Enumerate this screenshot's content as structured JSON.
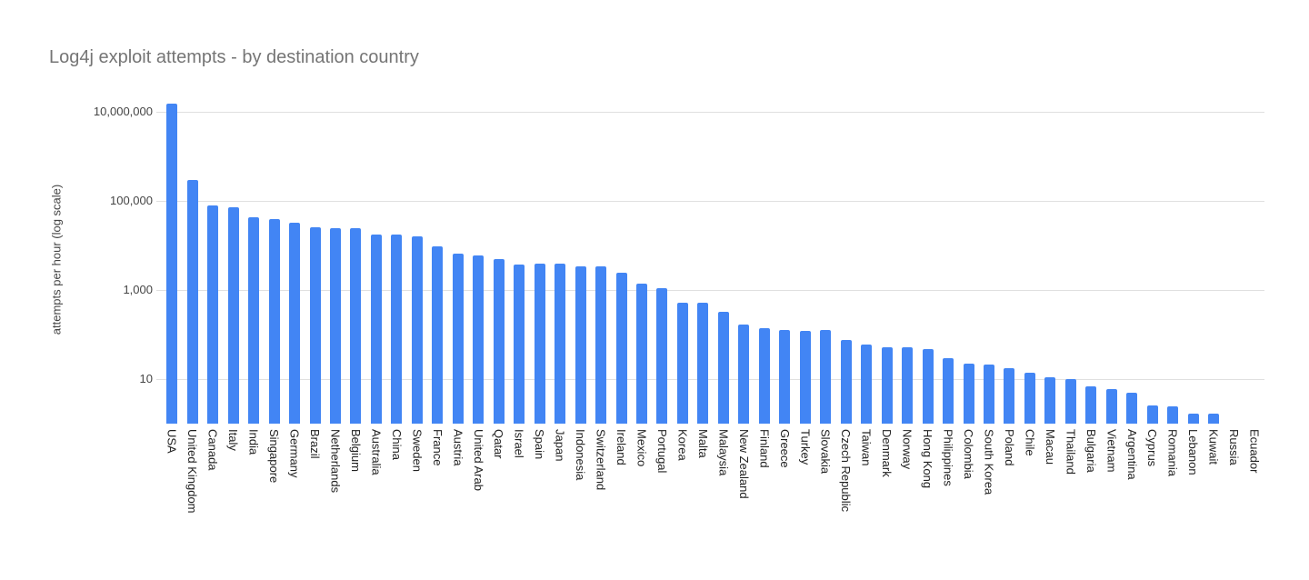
{
  "chart_data": {
    "type": "bar",
    "title": "Log4j exploit attempts - by destination country",
    "ylabel": "attempts per hour (log scale)",
    "xlabel": "",
    "yscale": "log",
    "ylim": [
      1,
      26000000
    ],
    "grid": true,
    "legend": "none",
    "bar_color": "#4285f4",
    "yticks": [
      {
        "label": "10,000,000",
        "value": 10000000
      },
      {
        "label": "100,000",
        "value": 100000
      },
      {
        "label": "1,000",
        "value": 1000
      },
      {
        "label": "10",
        "value": 10
      }
    ],
    "categories": [
      "USA",
      "United Kingdom",
      "Canada",
      "Italy",
      "India",
      "Singapore",
      "Germany",
      "Brazil",
      "Netherlands",
      "Belgium",
      "Australia",
      "China",
      "Sweden",
      "France",
      "Austria",
      "United Arab",
      "Qatar",
      "Israel",
      "Spain",
      "Japan",
      "Indonesia",
      "Switzerland",
      "Ireland",
      "Mexico",
      "Portugal",
      "Korea",
      "Malta",
      "Malaysia",
      "New Zealand",
      "Finland",
      "Greece",
      "Turkey",
      "Slovakia",
      "Czech Republic",
      "Taiwan",
      "Denmark",
      "Norway",
      "Hong Kong",
      "Philippines",
      "Colombia",
      "South Korea",
      "Poland",
      "Chile",
      "Macau",
      "Thailand",
      "Bulgaria",
      "Vietnam",
      "Argentina",
      "Cyprus",
      "Romania",
      "Lebanon",
      "Kuwait",
      "Russia",
      "Ecuador"
    ],
    "values": [
      15000000,
      290000,
      78000,
      72000,
      43000,
      40000,
      32000,
      26000,
      25000,
      24000,
      18000,
      18000,
      16000,
      9500,
      6500,
      5900,
      4900,
      3800,
      4000,
      4000,
      3400,
      3400,
      2400,
      1400,
      1100,
      530,
      530,
      330,
      170,
      140,
      125,
      120,
      125,
      77,
      60,
      53,
      53,
      48,
      30,
      22,
      21,
      18,
      14,
      11,
      10,
      7,
      6,
      5,
      2.6,
      2.5,
      1.7,
      1.7,
      1,
      1
    ]
  },
  "colors": {
    "background": "#ffffff",
    "title": "#757575",
    "axis_text": "#444444",
    "category_text": "#222222",
    "gridline": "#e0e0e0",
    "bar": "#4285f4"
  }
}
